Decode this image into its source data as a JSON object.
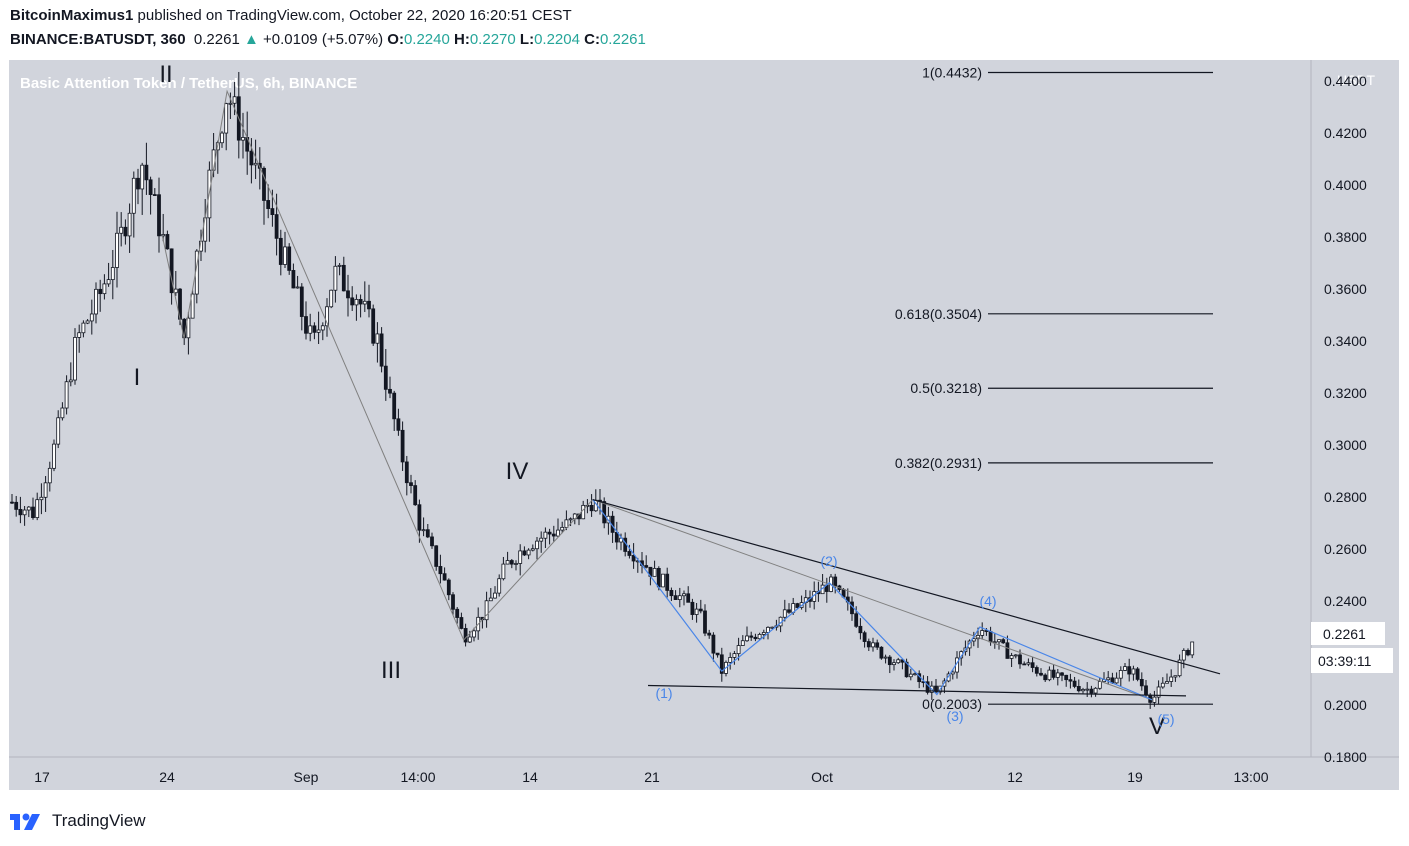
{
  "header": {
    "author": "BitcoinMaximus1",
    "published_line": " published on TradingView.com, October 22, 2020 16:20:51 CEST",
    "symbol": "BINANCE:BATUSDT, 360",
    "price": "0.2261",
    "change": "+0.0109 (+5.07%)",
    "o_label": "O:",
    "o_value": "0.2240",
    "h_label": "H:",
    "h_value": "0.2270",
    "l_label": "L:",
    "l_value": "0.2204",
    "c_label": "C:",
    "c_value": "0.2261"
  },
  "footer": {
    "brand": "TradingView"
  },
  "colors": {
    "pane_bg": "#d1d4dc",
    "up": "#26a69a",
    "wave_blue": "#4a86e8",
    "candle": "#131722"
  },
  "chart_data": {
    "type": "candlestick",
    "title": "Basic Attention Token / TetherUS, 6h, BINANCE",
    "currency": "USDT",
    "ylim": [
      0.18,
      0.448
    ],
    "y_ticks": [
      "0.4400",
      "0.4200",
      "0.4000",
      "0.3800",
      "0.3600",
      "0.3400",
      "0.3200",
      "0.3000",
      "0.2800",
      "0.2600",
      "0.2400",
      "0.2200",
      "0.2000",
      "0.1800"
    ],
    "x_ticks": [
      "17",
      "24",
      "Sep",
      "14:00",
      "14",
      "21",
      "Oct",
      "12",
      "19",
      "13:00"
    ],
    "last_price": "0.2261",
    "countdown": "03:39:11",
    "fib_levels": [
      {
        "label": "1(0.4432)",
        "value": 0.4432
      },
      {
        "label": "0.618(0.3504)",
        "value": 0.3504
      },
      {
        "label": "0.5(0.3218)",
        "value": 0.3218
      },
      {
        "label": "0.382(0.2931)",
        "value": 0.2931
      },
      {
        "label": "0(0.2003)",
        "value": 0.2003
      }
    ],
    "main_waves": [
      {
        "label": "I",
        "value": 0.341
      },
      {
        "label": "II",
        "value": 0.436
      },
      {
        "label": "III",
        "value": 0.225
      },
      {
        "label": "IV",
        "value": 0.279
      },
      {
        "label": "V",
        "value": 0.202
      }
    ],
    "sub_waves": [
      {
        "label": "(1)",
        "value": 0.213
      },
      {
        "label": "(2)",
        "value": 0.247
      },
      {
        "label": "(3)",
        "value": 0.204
      },
      {
        "label": "(4)",
        "value": 0.23
      },
      {
        "label": "(5)",
        "value": 0.202
      }
    ],
    "price_path": [
      0.278,
      0.274,
      0.3,
      0.34,
      0.356,
      0.378,
      0.41,
      0.38,
      0.341,
      0.395,
      0.436,
      0.412,
      0.388,
      0.362,
      0.338,
      0.366,
      0.358,
      0.34,
      0.3,
      0.268,
      0.25,
      0.226,
      0.236,
      0.254,
      0.262,
      0.266,
      0.27,
      0.279,
      0.266,
      0.258,
      0.249,
      0.242,
      0.234,
      0.213,
      0.224,
      0.23,
      0.235,
      0.24,
      0.247,
      0.236,
      0.222,
      0.217,
      0.21,
      0.204,
      0.218,
      0.23,
      0.222,
      0.216,
      0.212,
      0.209,
      0.206,
      0.21,
      0.214,
      0.202,
      0.212,
      0.226
    ]
  }
}
